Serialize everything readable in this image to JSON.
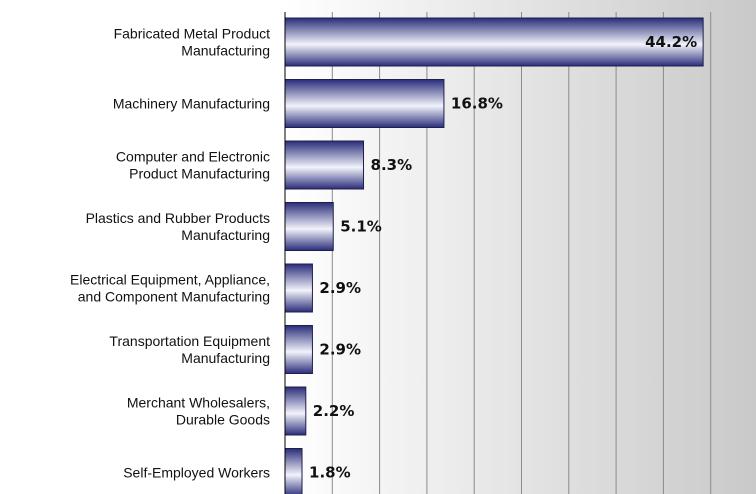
{
  "chart_data": {
    "type": "bar",
    "orientation": "horizontal",
    "categories": [
      [
        "Fabricated Metal Product",
        "Manufacturing"
      ],
      [
        "Machinery Manufacturing"
      ],
      [
        "Computer and Electronic",
        "Product Manufacturing"
      ],
      [
        "Plastics and Rubber Products",
        "Manufacturing"
      ],
      [
        "Electrical Equipment, Appliance,",
        "and Component Manufacturing"
      ],
      [
        "Transportation Equipment",
        "Manufacturing"
      ],
      [
        "Merchant Wholesalers,",
        "Durable Goods"
      ],
      [
        "Self-Employed Workers"
      ]
    ],
    "values": [
      44.2,
      16.8,
      8.3,
      5.1,
      2.9,
      2.9,
      2.2,
      1.8
    ],
    "value_labels": [
      "44.2%",
      "16.8%",
      "8.3%",
      "5.1%",
      "2.9%",
      "2.9%",
      "2.2%",
      "1.8%"
    ],
    "xlim": [
      0,
      50
    ],
    "grid": true,
    "colors": {
      "bar_dark": "#2a2d7a",
      "bar_light": "#f2f3fb",
      "bar_stroke": "#1e1f4a",
      "grid": "#8a8a8a"
    }
  }
}
